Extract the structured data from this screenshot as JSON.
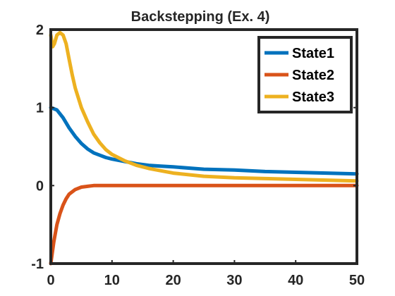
{
  "chart_data": {
    "type": "line",
    "title": "Backstepping (Ex. 4)",
    "xlabel": "",
    "ylabel": "",
    "xlim": [
      0,
      50
    ],
    "ylim": [
      -1,
      2
    ],
    "xticks": [
      0,
      10,
      20,
      30,
      40,
      50
    ],
    "yticks": [
      -1,
      0,
      1,
      2
    ],
    "grid": false,
    "legend_position": "top-right",
    "series": [
      {
        "name": "State1",
        "color": "#0072BD",
        "x": [
          0,
          1,
          2,
          3,
          4,
          5,
          6,
          7,
          8,
          9,
          10,
          12,
          14,
          16,
          18,
          20,
          25,
          30,
          35,
          40,
          45,
          50
        ],
        "y": [
          1.0,
          0.97,
          0.87,
          0.74,
          0.63,
          0.54,
          0.47,
          0.42,
          0.39,
          0.36,
          0.34,
          0.31,
          0.28,
          0.26,
          0.25,
          0.24,
          0.21,
          0.2,
          0.18,
          0.17,
          0.16,
          0.15
        ]
      },
      {
        "name": "State2",
        "color": "#D95319",
        "x": [
          0,
          0.5,
          1,
          1.5,
          2,
          2.5,
          3,
          4,
          5,
          6,
          7,
          8,
          10,
          15,
          20,
          30,
          40,
          50
        ],
        "y": [
          -1.0,
          -0.72,
          -0.5,
          -0.36,
          -0.25,
          -0.17,
          -0.11,
          -0.05,
          -0.02,
          -0.01,
          0.0,
          0.0,
          0.0,
          0.0,
          0.0,
          0.0,
          0.0,
          0.0
        ]
      },
      {
        "name": "State3",
        "color": "#EDB120",
        "x": [
          0,
          0.3,
          0.6,
          1,
          1.5,
          2,
          2.5,
          3,
          3.5,
          4,
          5,
          6,
          7,
          8,
          9,
          10,
          12,
          14,
          16,
          18,
          20,
          25,
          30,
          35,
          40,
          45,
          50
        ],
        "y": [
          1.93,
          1.78,
          1.82,
          1.93,
          1.96,
          1.93,
          1.82,
          1.62,
          1.42,
          1.25,
          1.0,
          0.82,
          0.66,
          0.55,
          0.46,
          0.4,
          0.32,
          0.26,
          0.22,
          0.19,
          0.16,
          0.12,
          0.1,
          0.09,
          0.08,
          0.07,
          0.06
        ]
      }
    ]
  }
}
